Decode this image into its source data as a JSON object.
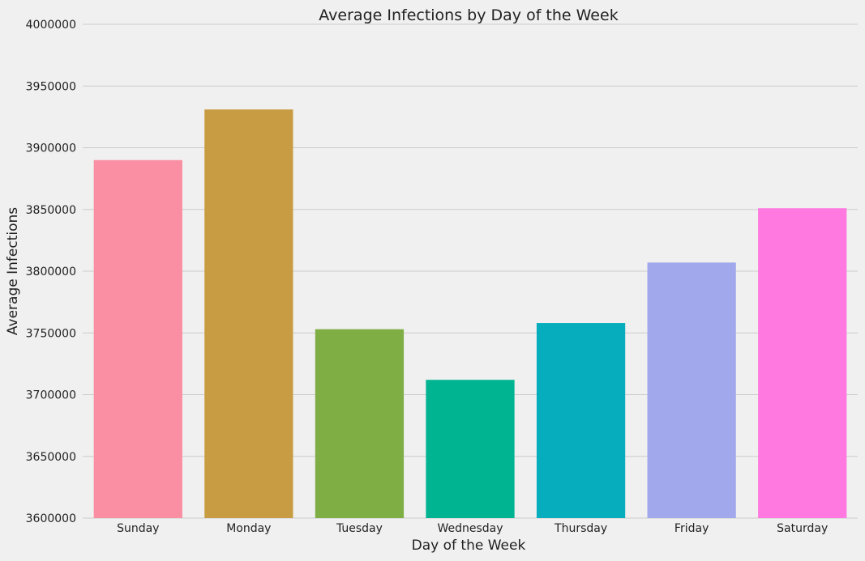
{
  "chart_data": {
    "type": "bar",
    "title": "Average Infections by Day of the Week",
    "xlabel": "Day of the Week",
    "ylabel": "Average Infections",
    "ylim": [
      3600000,
      4000000
    ],
    "yticks": [
      "3600000",
      "3650000",
      "3700000",
      "3750000",
      "3800000",
      "3850000",
      "3900000",
      "3950000",
      "4000000"
    ],
    "grid": true,
    "categories": [
      "Sunday",
      "Monday",
      "Tuesday",
      "Wednesday",
      "Thursday",
      "Friday",
      "Saturday"
    ],
    "values": [
      3890000,
      3931000,
      3753000,
      3712000,
      3758000,
      3807000,
      3851000
    ],
    "colors": [
      "#fa8fa3",
      "#c89c43",
      "#7fae45",
      "#00b492",
      "#06aebd",
      "#a2a8ec",
      "#ff79e0"
    ]
  }
}
